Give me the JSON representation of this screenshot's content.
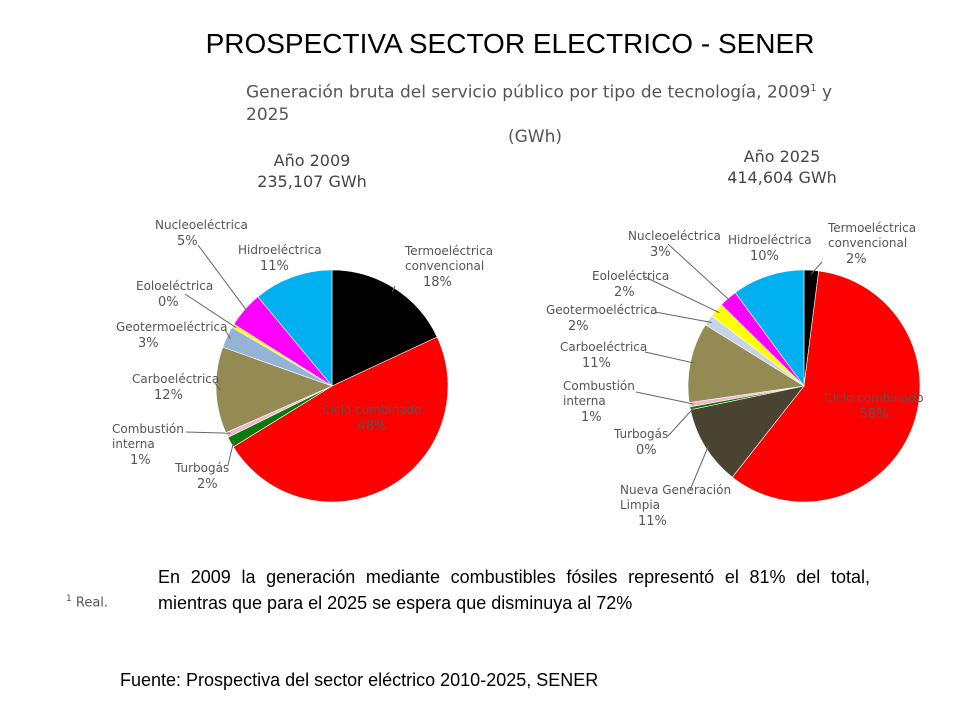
{
  "page": {
    "title": "PROSPECTIVA SECTOR ELECTRICO - SENER",
    "subtitle_line1": "Generación bruta del servicio público por tipo de tecnología, 2009",
    "subtitle_sup": "1",
    "subtitle_line1_end": " y 2025",
    "subtitle_line2": "(GWh)",
    "body_text": "En 2009 la generación mediante combustibles fósiles representó el 81% del total, mientras que para el 2025 se espera que disminuya al 72%",
    "footnote_sup": "1",
    "footnote_text": " Real.",
    "source": "Fuente: Prospectiva del sector eléctrico 2010-2025, SENER"
  },
  "chart_data": [
    {
      "type": "pie",
      "title": "Año 2009",
      "subtitle": "235,107 GWh",
      "slices": [
        {
          "label": "Termoeléctrica convencional",
          "label_lines": [
            "Termoeléctrica",
            "convencional"
          ],
          "pct_text": "18%",
          "value": 18,
          "color": "#000000"
        },
        {
          "label": "Ciclo combinado",
          "label_lines": [
            "Ciclo combinado"
          ],
          "pct_text": "48%",
          "value": 48,
          "color": "#ff0000"
        },
        {
          "label": "Turbogás",
          "label_lines": [
            "Turbogás"
          ],
          "pct_text": "2%",
          "value": 1.5,
          "color": "#0a7a0a"
        },
        {
          "label": "Combustión interna",
          "label_lines": [
            "Combustión",
            "interna"
          ],
          "pct_text": "1%",
          "value": 0.7,
          "color": "#f0b8d0"
        },
        {
          "label": "Carboeléctrica",
          "label_lines": [
            "Carboeléctrica"
          ],
          "pct_text": "12%",
          "value": 12,
          "color": "#948a54"
        },
        {
          "label": "Geotermoeléctrica",
          "label_lines": [
            "Geotermoeléctrica"
          ],
          "pct_text": "3%",
          "value": 3,
          "color": "#95b3d7"
        },
        {
          "label": "Eoloeléctrica",
          "label_lines": [
            "Eoloeléctrica"
          ],
          "pct_text": "0%",
          "value": 0.5,
          "color": "#ffff00"
        },
        {
          "label": "Nucleoeléctrica",
          "label_lines": [
            "Nucleoeléctrica"
          ],
          "pct_text": "5%",
          "value": 5,
          "color": "#ff00ff"
        },
        {
          "label": "Hidroeléctrica",
          "label_lines": [
            "Hidroeléctrica"
          ],
          "pct_text": "11%",
          "value": 11,
          "color": "#00b0f0"
        }
      ]
    },
    {
      "type": "pie",
      "title": "Año 2025",
      "subtitle": "414,604 GWh",
      "slices": [
        {
          "label": "Termoeléctrica convencional",
          "label_lines": [
            "Termoeléctrica",
            "convencional"
          ],
          "pct_text": "2%",
          "value": 2,
          "color": "#000000"
        },
        {
          "label": "Ciclo combinado",
          "label_lines": [
            "Ciclo combinado"
          ],
          "pct_text": "58%",
          "value": 58,
          "color": "#ff0000"
        },
        {
          "label": "Nueva Generación Limpia",
          "label_lines": [
            "Nueva Generación",
            "Limpia"
          ],
          "pct_text": "11%",
          "value": 11,
          "color": "#4a4331"
        },
        {
          "label": "Turbogás",
          "label_lines": [
            "Turbogás"
          ],
          "pct_text": "0%",
          "value": 0.4,
          "color": "#0a7a0a"
        },
        {
          "label": "Combustión interna",
          "label_lines": [
            "Combustión",
            "interna"
          ],
          "pct_text": "1%",
          "value": 0.6,
          "color": "#f0b8d0"
        },
        {
          "label": "Carboeléctrica",
          "label_lines": [
            "Carboeléctrica"
          ],
          "pct_text": "11%",
          "value": 11,
          "color": "#948a54"
        },
        {
          "label": "Geotermoeléctrica",
          "label_lines": [
            "Geotermoeléctrica"
          ],
          "pct_text": "2%",
          "value": 1.5,
          "color": "#c5d5e8"
        },
        {
          "label": "Eoloeléctrica",
          "label_lines": [
            "Eoloeléctrica"
          ],
          "pct_text": "2%",
          "value": 2,
          "color": "#ffff00"
        },
        {
          "label": "Nucleoeléctrica",
          "label_lines": [
            "Nucleoeléctrica"
          ],
          "pct_text": "3%",
          "value": 2.5,
          "color": "#ff00ff"
        },
        {
          "label": "Hidroeléctrica",
          "label_lines": [
            "Hidroeléctrica"
          ],
          "pct_text": "10%",
          "value": 10,
          "color": "#00b0f0"
        }
      ]
    }
  ]
}
